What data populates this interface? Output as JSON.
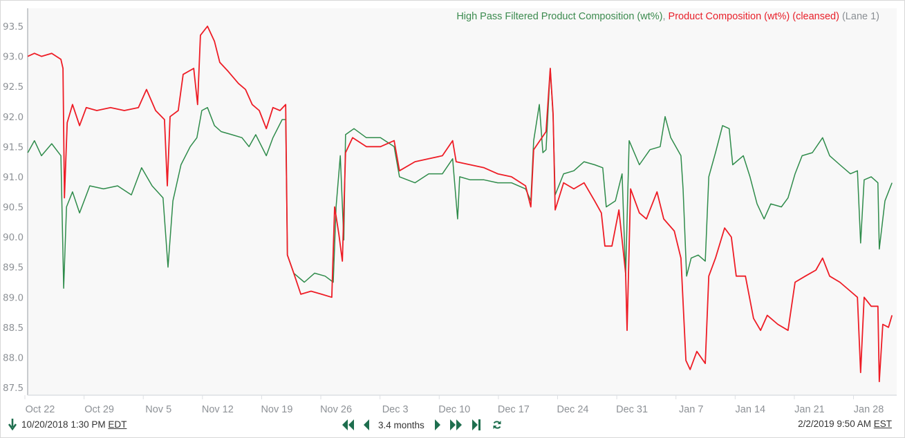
{
  "legend": {
    "series1": "High Pass Filtered Product Composition (wt%)",
    "separator": ", ",
    "series2": "Product Composition (wt%) (cleansed)",
    "suffix": " (Lane 1)"
  },
  "range": {
    "start": "10/20/2018 1:30 PM",
    "start_tz": "EDT",
    "end": "2/2/2019 9:50 AM",
    "end_tz": "EST",
    "span": "3.4 months"
  },
  "icons": {
    "start": "arrow-down-icon",
    "nav": [
      "double-left-icon",
      "left-icon",
      "right-icon",
      "double-right-icon",
      "skip-end-icon",
      "refresh-icon"
    ]
  },
  "colors": {
    "series1": "#2e8b4a",
    "series2": "#ee1c25",
    "accent": "#1e6e4e"
  },
  "chart_data": {
    "type": "line",
    "title": "",
    "xlabel": "",
    "ylabel": "",
    "ylim": [
      87.5,
      93.5
    ],
    "yticks": [
      "87.5",
      "88.0",
      "88.5",
      "89.0",
      "89.5",
      "90.0",
      "90.5",
      "91.0",
      "91.5",
      "92.0",
      "92.5",
      "93.0",
      "93.5"
    ],
    "xticks": [
      {
        "label": "Oct 22",
        "date": "2018-10-22"
      },
      {
        "label": "Oct 29",
        "date": "2018-10-29"
      },
      {
        "label": "Nov 5",
        "date": "2018-11-05"
      },
      {
        "label": "Nov 12",
        "date": "2018-11-12"
      },
      {
        "label": "Nov 19",
        "date": "2018-11-19"
      },
      {
        "label": "Nov 26",
        "date": "2018-11-26"
      },
      {
        "label": "Dec 3",
        "date": "2018-12-03"
      },
      {
        "label": "Dec 10",
        "date": "2018-12-10"
      },
      {
        "label": "Dec 17",
        "date": "2018-12-17"
      },
      {
        "label": "Dec 24",
        "date": "2018-12-24"
      },
      {
        "label": "Dec 31",
        "date": "2018-12-31"
      },
      {
        "label": "Jan 7",
        "date": "2019-01-07"
      },
      {
        "label": "Jan 14",
        "date": "2019-01-14"
      },
      {
        "label": "Jan 21",
        "date": "2019-01-21"
      },
      {
        "label": "Jan 28",
        "date": "2019-01-28"
      }
    ],
    "grid": false,
    "legend_position": "top-right",
    "series": [
      {
        "name": "High Pass Filtered Product Composition (wt%)",
        "color": "#2e8b4a",
        "points": [
          [
            "2018-10-20 13:00",
            91.4
          ],
          [
            "2018-10-21 08:00",
            91.6
          ],
          [
            "2018-10-22 04:00",
            91.35
          ],
          [
            "2018-10-23 09:00",
            91.55
          ],
          [
            "2018-10-24 11:00",
            91.35
          ],
          [
            "2018-10-24 19:00",
            89.15
          ],
          [
            "2018-10-25 03:00",
            90.5
          ],
          [
            "2018-10-25 20:00",
            90.75
          ],
          [
            "2018-10-26 16:00",
            90.4
          ],
          [
            "2018-10-27 21:00",
            90.85
          ],
          [
            "2018-10-29 12:00",
            90.8
          ],
          [
            "2018-10-31 04:00",
            90.85
          ],
          [
            "2018-11-01 19:00",
            90.7
          ],
          [
            "2018-11-03 00:00",
            91.15
          ],
          [
            "2018-11-04 06:00",
            90.85
          ],
          [
            "2018-11-05 13:00",
            90.65
          ],
          [
            "2018-11-06 03:00",
            89.5
          ],
          [
            "2018-11-06 17:00",
            90.6
          ],
          [
            "2018-11-07 16:00",
            91.2
          ],
          [
            "2018-11-08 18:00",
            91.5
          ],
          [
            "2018-11-09 13:00",
            91.65
          ],
          [
            "2018-11-10 03:00",
            92.1
          ],
          [
            "2018-11-10 19:00",
            92.15
          ],
          [
            "2018-11-11 15:00",
            91.85
          ],
          [
            "2018-11-12 10:00",
            91.75
          ],
          [
            "2018-11-13 16:00",
            91.7
          ],
          [
            "2018-11-14 21:00",
            91.65
          ],
          [
            "2018-11-15 17:00",
            91.5
          ],
          [
            "2018-11-16 12:00",
            91.7
          ],
          [
            "2018-11-17 18:00",
            91.35
          ],
          [
            "2018-11-18 13:00",
            91.65
          ],
          [
            "2018-11-19 15:00",
            91.95
          ],
          [
            "2018-11-20 01:00",
            91.95
          ],
          [
            "2018-11-20 06:00",
            89.7
          ],
          [
            "2018-11-21 00:00",
            89.4
          ],
          [
            "2018-11-22 06:00",
            89.25
          ],
          [
            "2018-11-23 11:00",
            89.4
          ],
          [
            "2018-11-24 17:00",
            89.35
          ],
          [
            "2018-11-25 16:00",
            89.25
          ],
          [
            "2018-11-26 00:00",
            90.5
          ],
          [
            "2018-11-26 12:00",
            91.35
          ],
          [
            "2018-11-26 22:00",
            89.95
          ],
          [
            "2018-11-27 03:00",
            91.7
          ],
          [
            "2018-11-28 03:00",
            91.8
          ],
          [
            "2018-11-29 14:00",
            91.65
          ],
          [
            "2018-12-01 06:00",
            91.65
          ],
          [
            "2018-12-02 21:00",
            91.5
          ],
          [
            "2018-12-03 12:00",
            91.0
          ],
          [
            "2018-12-05 08:00",
            90.9
          ],
          [
            "2018-12-06 23:00",
            91.05
          ],
          [
            "2018-12-08 14:00",
            91.05
          ],
          [
            "2018-12-09 19:00",
            91.3
          ],
          [
            "2018-12-10 09:00",
            90.3
          ],
          [
            "2018-12-10 15:00",
            91.0
          ],
          [
            "2018-12-11 21:00",
            90.95
          ],
          [
            "2018-12-13 12:00",
            90.95
          ],
          [
            "2018-12-15 03:00",
            90.9
          ],
          [
            "2018-12-16 18:00",
            90.9
          ],
          [
            "2018-12-18 10:00",
            90.8
          ],
          [
            "2018-12-19 01:00",
            90.6
          ],
          [
            "2018-12-19 09:00",
            91.6
          ],
          [
            "2018-12-20 01:00",
            92.2
          ],
          [
            "2018-12-20 11:00",
            91.4
          ],
          [
            "2018-12-20 20:00",
            91.45
          ],
          [
            "2018-12-21 08:00",
            92.8
          ],
          [
            "2018-12-21 16:00",
            92.0
          ],
          [
            "2018-12-21 22:00",
            90.7
          ],
          [
            "2018-12-22 22:00",
            91.05
          ],
          [
            "2018-12-24 03:00",
            91.1
          ],
          [
            "2018-12-25 08:00",
            91.25
          ],
          [
            "2018-12-26 14:00",
            91.2
          ],
          [
            "2018-12-27 13:00",
            91.15
          ],
          [
            "2018-12-27 23:00",
            90.5
          ],
          [
            "2018-12-29 01:00",
            90.6
          ],
          [
            "2018-12-29 20:00",
            91.05
          ],
          [
            "2018-12-30 06:00",
            89.35
          ],
          [
            "2018-12-30 16:00",
            91.6
          ],
          [
            "2018-12-31 21:00",
            91.2
          ],
          [
            "2019-01-02 03:00",
            91.45
          ],
          [
            "2019-01-03 08:00",
            91.5
          ],
          [
            "2019-01-03 22:00",
            92.0
          ],
          [
            "2019-01-04 14:00",
            91.65
          ],
          [
            "2019-01-05 19:00",
            91.35
          ],
          [
            "2019-01-06 01:00",
            90.8
          ],
          [
            "2019-01-06 11:00",
            89.35
          ],
          [
            "2019-01-07 00:00",
            89.65
          ],
          [
            "2019-01-07 20:00",
            89.7
          ],
          [
            "2019-01-08 16:00",
            89.6
          ],
          [
            "2019-01-09 02:00",
            91.0
          ],
          [
            "2019-01-09 21:00",
            91.4
          ],
          [
            "2019-01-10 17:00",
            91.85
          ],
          [
            "2019-01-11 12:00",
            91.8
          ],
          [
            "2019-01-11 22:00",
            91.2
          ],
          [
            "2019-01-13 04:00",
            91.35
          ],
          [
            "2019-01-13 23:00",
            91.0
          ],
          [
            "2019-01-14 19:00",
            90.55
          ],
          [
            "2019-01-15 15:00",
            90.3
          ],
          [
            "2019-01-16 10:00",
            90.55
          ],
          [
            "2019-01-17 16:00",
            90.5
          ],
          [
            "2019-01-18 11:00",
            90.65
          ],
          [
            "2019-01-19 07:00",
            91.05
          ],
          [
            "2019-01-20 03:00",
            91.35
          ],
          [
            "2019-01-21 08:00",
            91.4
          ],
          [
            "2019-01-22 13:00",
            91.65
          ],
          [
            "2019-01-23 09:00",
            91.35
          ],
          [
            "2019-01-24 14:00",
            91.2
          ],
          [
            "2019-01-25 20:00",
            91.05
          ],
          [
            "2019-01-26 16:00",
            91.1
          ],
          [
            "2019-01-27 01:00",
            89.9
          ],
          [
            "2019-01-27 11:00",
            90.95
          ],
          [
            "2019-01-28 07:00",
            91.0
          ],
          [
            "2019-01-29 02:00",
            90.9
          ],
          [
            "2019-01-29 06:00",
            89.8
          ],
          [
            "2019-01-29 22:00",
            90.6
          ],
          [
            "2019-01-30 18:00",
            90.9
          ]
        ]
      },
      {
        "name": "Product Composition (wt%) (cleansed)",
        "color": "#ee1c25",
        "points": [
          [
            "2018-10-20 13:00",
            93.0
          ],
          [
            "2018-10-21 08:00",
            93.05
          ],
          [
            "2018-10-22 04:00",
            93.0
          ],
          [
            "2018-10-23 09:00",
            93.05
          ],
          [
            "2018-10-24 11:00",
            92.95
          ],
          [
            "2018-10-24 17:00",
            92.8
          ],
          [
            "2018-10-24 21:00",
            90.65
          ],
          [
            "2018-10-25 05:00",
            91.9
          ],
          [
            "2018-10-25 20:00",
            92.2
          ],
          [
            "2018-10-26 16:00",
            91.85
          ],
          [
            "2018-10-27 11:00",
            92.15
          ],
          [
            "2018-10-28 17:00",
            92.1
          ],
          [
            "2018-10-30 08:00",
            92.15
          ],
          [
            "2018-10-31 23:00",
            92.1
          ],
          [
            "2018-11-02 15:00",
            92.15
          ],
          [
            "2018-11-03 14:00",
            92.45
          ],
          [
            "2018-11-04 16:00",
            92.1
          ],
          [
            "2018-11-05 17:00",
            91.95
          ],
          [
            "2018-11-06 01:00",
            90.85
          ],
          [
            "2018-11-06 09:00",
            92.0
          ],
          [
            "2018-11-07 08:00",
            92.1
          ],
          [
            "2018-11-07 22:00",
            92.7
          ],
          [
            "2018-11-09 04:00",
            92.8
          ],
          [
            "2018-11-09 15:00",
            92.2
          ],
          [
            "2018-11-09 23:00",
            93.35
          ],
          [
            "2018-11-10 19:00",
            93.5
          ],
          [
            "2018-11-11 15:00",
            93.25
          ],
          [
            "2018-11-12 06:00",
            92.9
          ],
          [
            "2018-11-13 06:00",
            92.75
          ],
          [
            "2018-11-14 11:00",
            92.55
          ],
          [
            "2018-11-15 07:00",
            92.45
          ],
          [
            "2018-11-16 02:00",
            92.2
          ],
          [
            "2018-11-16 22:00",
            92.1
          ],
          [
            "2018-11-17 18:00",
            91.8
          ],
          [
            "2018-11-18 13:00",
            92.15
          ],
          [
            "2018-11-19 09:00",
            92.1
          ],
          [
            "2018-11-20 01:00",
            92.2
          ],
          [
            "2018-11-20 06:00",
            89.7
          ],
          [
            "2018-11-21 00:00",
            89.4
          ],
          [
            "2018-11-21 20:00",
            89.05
          ],
          [
            "2018-11-23 01:00",
            89.1
          ],
          [
            "2018-11-24 07:00",
            89.05
          ],
          [
            "2018-11-25 12:00",
            89.0
          ],
          [
            "2018-11-25 20:00",
            90.5
          ],
          [
            "2018-11-26 08:00",
            90.05
          ],
          [
            "2018-11-26 18:00",
            89.6
          ],
          [
            "2018-11-27 03:00",
            91.4
          ],
          [
            "2018-11-27 23:00",
            91.65
          ],
          [
            "2018-11-29 14:00",
            91.5
          ],
          [
            "2018-12-01 06:00",
            91.5
          ],
          [
            "2018-12-02 21:00",
            91.6
          ],
          [
            "2018-12-03 12:00",
            91.1
          ],
          [
            "2018-12-05 08:00",
            91.25
          ],
          [
            "2018-12-06 23:00",
            91.3
          ],
          [
            "2018-12-08 14:00",
            91.35
          ],
          [
            "2018-12-09 19:00",
            91.6
          ],
          [
            "2018-12-10 05:00",
            91.25
          ],
          [
            "2018-12-11 21:00",
            91.2
          ],
          [
            "2018-12-13 12:00",
            91.15
          ],
          [
            "2018-12-15 03:00",
            91.05
          ],
          [
            "2018-12-16 18:00",
            91.0
          ],
          [
            "2018-12-18 10:00",
            90.85
          ],
          [
            "2018-12-19 01:00",
            90.5
          ],
          [
            "2018-12-19 09:00",
            91.45
          ],
          [
            "2018-12-20 20:00",
            91.75
          ],
          [
            "2018-12-21 08:00",
            92.8
          ],
          [
            "2018-12-21 16:00",
            92.05
          ],
          [
            "2018-12-21 22:00",
            90.45
          ],
          [
            "2018-12-22 22:00",
            90.9
          ],
          [
            "2018-12-24 03:00",
            90.8
          ],
          [
            "2018-12-25 08:00",
            90.9
          ],
          [
            "2018-12-26 14:00",
            90.6
          ],
          [
            "2018-12-27 09:00",
            90.4
          ],
          [
            "2018-12-27 19:00",
            89.85
          ],
          [
            "2018-12-28 15:00",
            89.85
          ],
          [
            "2018-12-29 11:00",
            90.45
          ],
          [
            "2018-12-30 06:00",
            89.4
          ],
          [
            "2018-12-30 10:00",
            88.45
          ],
          [
            "2018-12-30 20:00",
            90.8
          ],
          [
            "2018-12-31 21:00",
            90.4
          ],
          [
            "2019-01-01 17:00",
            90.3
          ],
          [
            "2019-01-02 23:00",
            90.75
          ],
          [
            "2019-01-03 18:00",
            90.3
          ],
          [
            "2019-01-05 00:00",
            90.1
          ],
          [
            "2019-01-05 19:00",
            89.65
          ],
          [
            "2019-01-06 09:00",
            87.95
          ],
          [
            "2019-01-06 21:00",
            87.8
          ],
          [
            "2019-01-07 16:00",
            88.1
          ],
          [
            "2019-01-08 16:00",
            87.9
          ],
          [
            "2019-01-09 02:00",
            89.35
          ],
          [
            "2019-01-09 21:00",
            89.65
          ],
          [
            "2019-01-10 23:00",
            90.15
          ],
          [
            "2019-01-11 18:00",
            90.0
          ],
          [
            "2019-01-12 08:00",
            89.35
          ],
          [
            "2019-01-13 10:00",
            89.35
          ],
          [
            "2019-01-14 09:00",
            88.65
          ],
          [
            "2019-01-15 05:00",
            88.45
          ],
          [
            "2019-01-16 00:00",
            88.7
          ],
          [
            "2019-01-17 06:00",
            88.55
          ],
          [
            "2019-01-18 11:00",
            88.45
          ],
          [
            "2019-01-19 07:00",
            89.25
          ],
          [
            "2019-01-20 12:00",
            89.35
          ],
          [
            "2019-01-21 18:00",
            89.45
          ],
          [
            "2019-01-22 13:00",
            89.65
          ],
          [
            "2019-01-23 09:00",
            89.35
          ],
          [
            "2019-01-24 14:00",
            89.25
          ],
          [
            "2019-01-25 20:00",
            89.1
          ],
          [
            "2019-01-26 16:00",
            89.0
          ],
          [
            "2019-01-27 01:00",
            87.75
          ],
          [
            "2019-01-27 11:00",
            89.0
          ],
          [
            "2019-01-28 07:00",
            88.85
          ],
          [
            "2019-01-29 02:00",
            88.85
          ],
          [
            "2019-01-29 06:00",
            87.6
          ],
          [
            "2019-01-29 16:00",
            88.55
          ],
          [
            "2019-01-30 08:00",
            88.5
          ],
          [
            "2019-01-30 18:00",
            88.7
          ]
        ]
      }
    ]
  }
}
